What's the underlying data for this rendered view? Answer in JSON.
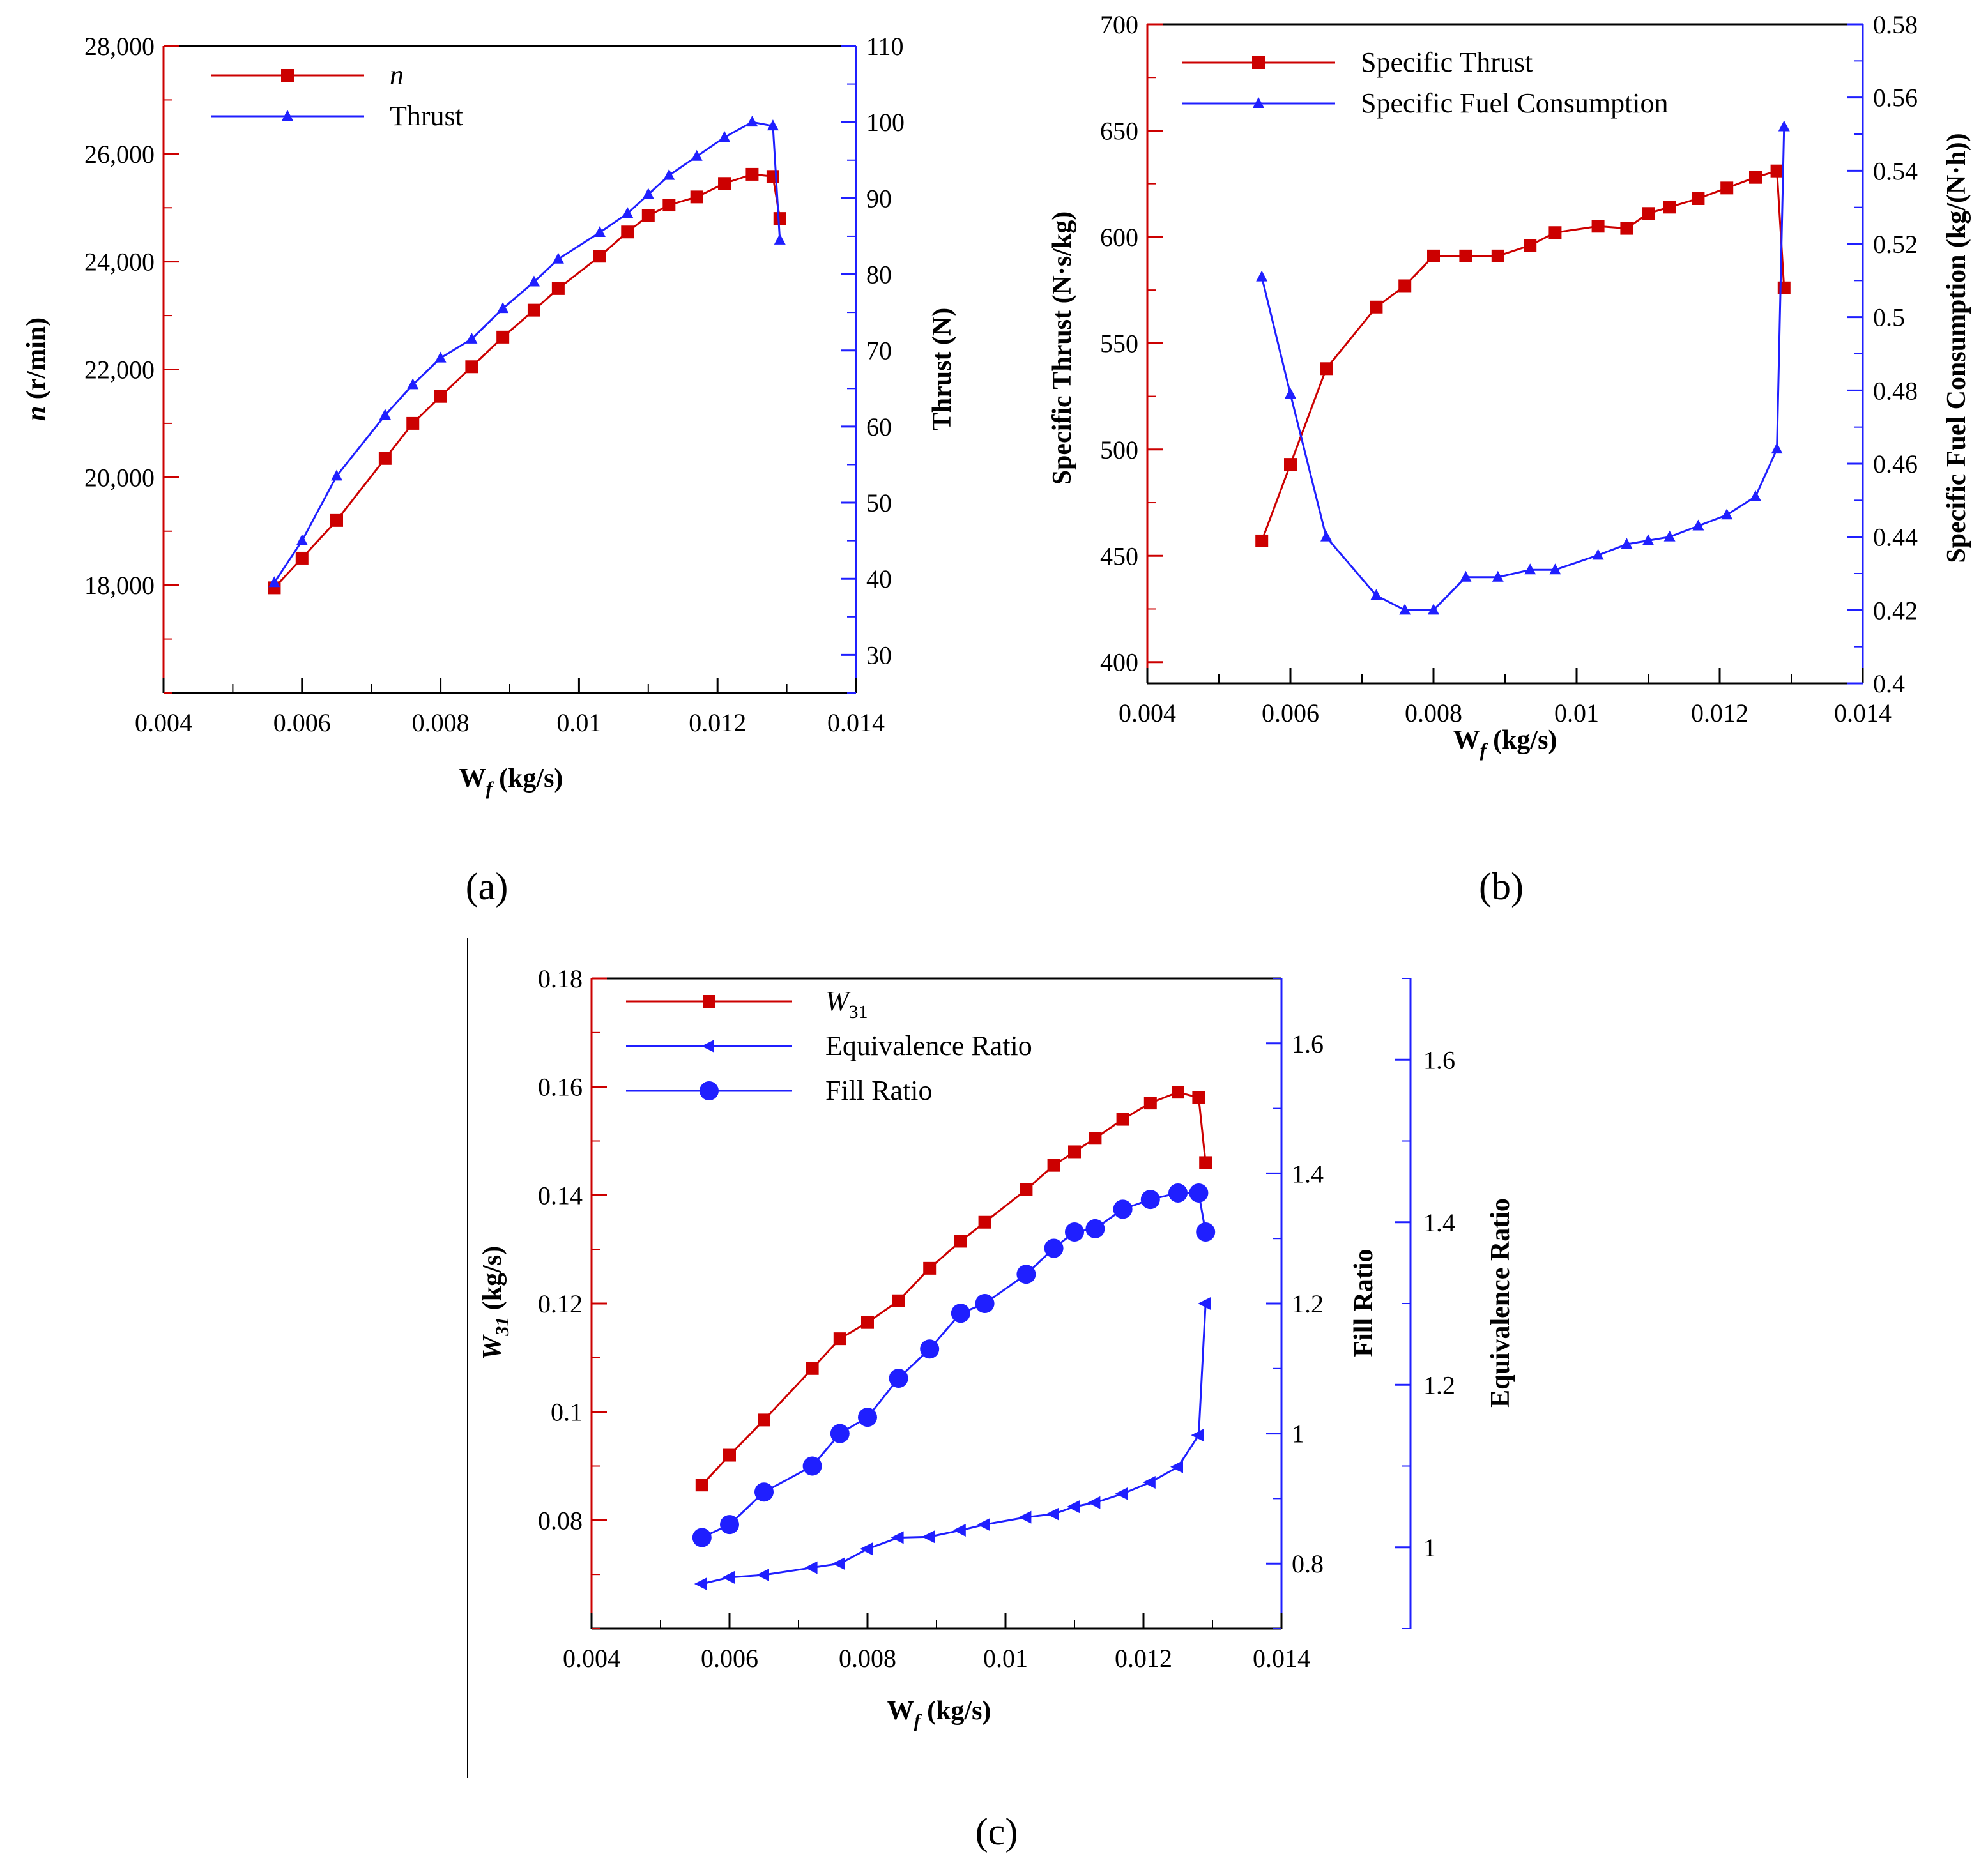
{
  "colors": {
    "red": "#cc0000",
    "blue": "#1f1fff",
    "black": "#000000"
  },
  "panels": [
    {
      "label": "(a)"
    },
    {
      "label": "(b)"
    },
    {
      "label": "(c)"
    }
  ],
  "chart_data": [
    {
      "id": "a",
      "type": "line",
      "xlabel": "W_f (kg/s)",
      "xlabel_main": "W",
      "xlabel_sub": "f",
      "xlabel_rest": " (kg/s)",
      "xlim": [
        0.004,
        0.014
      ],
      "xticks": [
        0.004,
        0.006,
        0.008,
        0.01,
        0.012,
        0.014
      ],
      "xtick_labels": [
        "0.004",
        "0.006",
        "0.008",
        "0.01",
        "0.012",
        "0.014"
      ],
      "legend_position": "top-left",
      "axes": [
        {
          "side": "left",
          "label": "n (r/min)",
          "label_main": "n",
          "label_rest": " (r/min)",
          "color": "#cc0000",
          "lim": [
            16000,
            28000
          ],
          "ticks": [
            18000,
            20000,
            22000,
            24000,
            26000,
            28000
          ],
          "tick_labels": [
            "18,000",
            "20,000",
            "22,000",
            "24,000",
            "26,000",
            "28,000"
          ]
        },
        {
          "side": "right",
          "label": "Thrust (N)",
          "color": "#1f1fff",
          "lim": [
            25,
            110
          ],
          "ticks": [
            30,
            40,
            50,
            60,
            70,
            80,
            90,
            100,
            110
          ],
          "tick_labels": [
            "30",
            "40",
            "50",
            "60",
            "70",
            "80",
            "90",
            "100",
            "110"
          ]
        }
      ],
      "series": [
        {
          "name": "n",
          "axis": 0,
          "color": "#cc0000",
          "marker": "square",
          "x": [
            0.0056,
            0.006,
            0.0065,
            0.0072,
            0.0076,
            0.008,
            0.00845,
            0.0089,
            0.00935,
            0.0097,
            0.0103,
            0.0107,
            0.011,
            0.0113,
            0.0117,
            0.0121,
            0.0125,
            0.0128,
            0.0129
          ],
          "values": [
            17950,
            18500,
            19200,
            20350,
            21000,
            21500,
            22050,
            22600,
            23100,
            23500,
            24100,
            24550,
            24850,
            25050,
            25200,
            25450,
            25620,
            25580,
            24800
          ]
        },
        {
          "name": "Thrust",
          "axis": 1,
          "color": "#1f1fff",
          "marker": "triangle",
          "x": [
            0.0056,
            0.006,
            0.0065,
            0.0072,
            0.0076,
            0.008,
            0.00845,
            0.0089,
            0.00935,
            0.0097,
            0.0103,
            0.0107,
            0.011,
            0.0113,
            0.0117,
            0.0121,
            0.0125,
            0.0128,
            0.0129
          ],
          "values": [
            39.5,
            45,
            53.5,
            61.5,
            65.5,
            69,
            71.5,
            75.5,
            79,
            82,
            85.5,
            88,
            90.5,
            93,
            95.5,
            98,
            100,
            99.5,
            84.5
          ]
        }
      ]
    },
    {
      "id": "b",
      "type": "line",
      "xlabel": "W_f (kg/s)",
      "xlabel_main": "W",
      "xlabel_sub": "f",
      "xlabel_rest": " (kg/s)",
      "xlim": [
        0.004,
        0.014
      ],
      "xticks": [
        0.004,
        0.006,
        0.008,
        0.01,
        0.012,
        0.014
      ],
      "xtick_labels": [
        "0.004",
        "0.006",
        "0.008",
        "0.01",
        "0.012",
        "0.014"
      ],
      "legend_position": "top-left",
      "axes": [
        {
          "side": "left",
          "label": "Specific Thrust (N·s/kg)",
          "color": "#cc0000",
          "lim": [
            390,
            700
          ],
          "ticks": [
            400,
            450,
            500,
            550,
            600,
            650,
            700
          ],
          "tick_labels": [
            "400",
            "450",
            "500",
            "550",
            "600",
            "650",
            "700"
          ]
        },
        {
          "side": "right",
          "label": "Specific Fuel Consumption (kg/(N·h))",
          "color": "#1f1fff",
          "lim": [
            0.4,
            0.58
          ],
          "ticks": [
            0.4,
            0.42,
            0.44,
            0.46,
            0.48,
            0.5,
            0.52,
            0.54,
            0.56,
            0.58
          ],
          "tick_labels": [
            "0.4",
            "0.42",
            "0.44",
            "0.46",
            "0.48",
            "0.5",
            "0.52",
            "0.54",
            "0.56",
            "0.58"
          ]
        }
      ],
      "series": [
        {
          "name": "Specific Thrust",
          "axis": 0,
          "color": "#cc0000",
          "marker": "square",
          "x": [
            0.0056,
            0.006,
            0.0065,
            0.0072,
            0.0076,
            0.008,
            0.00845,
            0.0089,
            0.00935,
            0.0097,
            0.0103,
            0.0107,
            0.011,
            0.0113,
            0.0117,
            0.0121,
            0.0125,
            0.0128,
            0.0129
          ],
          "values": [
            457,
            493,
            538,
            567,
            577,
            591,
            591,
            591,
            596,
            602,
            605,
            604,
            611,
            614,
            618,
            623,
            628,
            631,
            576
          ]
        },
        {
          "name": "Specific Fuel Consumption",
          "axis": 1,
          "color": "#1f1fff",
          "marker": "triangle",
          "x": [
            0.0056,
            0.006,
            0.0065,
            0.0072,
            0.0076,
            0.008,
            0.00845,
            0.0089,
            0.00935,
            0.0097,
            0.0103,
            0.0107,
            0.011,
            0.0113,
            0.0117,
            0.0121,
            0.0125,
            0.0128,
            0.0129
          ],
          "values": [
            0.511,
            0.479,
            0.44,
            0.424,
            0.42,
            0.42,
            0.429,
            0.429,
            0.431,
            0.431,
            0.435,
            0.438,
            0.439,
            0.44,
            0.443,
            0.446,
            0.451,
            0.464,
            0.552
          ]
        }
      ]
    },
    {
      "id": "c",
      "type": "line",
      "xlabel": "W_f (kg/s)",
      "xlabel_main": "W",
      "xlabel_sub": "f",
      "xlabel_rest": " (kg/s)",
      "xlim": [
        0.004,
        0.014
      ],
      "xticks": [
        0.004,
        0.006,
        0.008,
        0.01,
        0.012,
        0.014
      ],
      "xtick_labels": [
        "0.004",
        "0.006",
        "0.008",
        "0.01",
        "0.012",
        "0.014"
      ],
      "legend_position": "top-left",
      "axes": [
        {
          "side": "left",
          "label": "W31 (kg/s)",
          "label_main": "W",
          "label_sub": "31",
          "label_rest": " (kg/s)",
          "color": "#cc0000",
          "lim": [
            0.06,
            0.18
          ],
          "ticks": [
            0.08,
            0.1,
            0.12,
            0.14,
            0.16,
            0.18
          ],
          "tick_labels": [
            "0.08",
            "0.1",
            "0.12",
            "0.14",
            "0.16",
            "0.18"
          ]
        },
        {
          "side": "right",
          "label": "Fill Ratio",
          "color": "#1f1fff",
          "lim": [
            0.7,
            1.7
          ],
          "ticks": [
            0.8,
            1,
            1.2,
            1.4,
            1.6
          ],
          "tick_labels": [
            "0.8",
            "1",
            "1.2",
            "1.4",
            "1.6"
          ]
        },
        {
          "side": "right-outer",
          "label": "Equivalence Ratio",
          "color": "#1f1fff",
          "lim": [
            0.9,
            1.7
          ],
          "ticks": [
            1,
            1.2,
            1.4,
            1.6
          ],
          "tick_labels": [
            "1",
            "1.2",
            "1.4",
            "1.6"
          ]
        }
      ],
      "series": [
        {
          "name": "W31",
          "axis": 0,
          "color": "#cc0000",
          "marker": "square",
          "x": [
            0.0056,
            0.006,
            0.0065,
            0.0072,
            0.0076,
            0.008,
            0.00845,
            0.0089,
            0.00935,
            0.0097,
            0.0103,
            0.0107,
            0.011,
            0.0113,
            0.0117,
            0.0121,
            0.0125,
            0.0128,
            0.0129
          ],
          "values": [
            0.0865,
            0.092,
            0.0985,
            0.108,
            0.1135,
            0.1165,
            0.1205,
            0.1265,
            0.1315,
            0.135,
            0.141,
            0.1455,
            0.148,
            0.1505,
            0.154,
            0.157,
            0.159,
            0.158,
            0.146
          ]
        },
        {
          "name": "Equivalence Ratio",
          "axis": 2,
          "color": "#1f1fff",
          "marker": "left-triangle",
          "x": [
            0.0056,
            0.006,
            0.0065,
            0.0072,
            0.0076,
            0.008,
            0.00845,
            0.0089,
            0.00935,
            0.0097,
            0.0103,
            0.0107,
            0.011,
            0.0113,
            0.0117,
            0.0121,
            0.0125,
            0.0128,
            0.0129
          ],
          "values": [
            0.955,
            0.963,
            0.966,
            0.975,
            0.98,
            0.998,
            1.012,
            1.013,
            1.021,
            1.028,
            1.037,
            1.041,
            1.05,
            1.055,
            1.066,
            1.08,
            1.099,
            1.138,
            1.3
          ]
        },
        {
          "name": "Fill Ratio",
          "axis": 1,
          "color": "#1f1fff",
          "marker": "circle",
          "x": [
            0.0056,
            0.006,
            0.0065,
            0.0072,
            0.0076,
            0.008,
            0.00845,
            0.0089,
            0.00935,
            0.0097,
            0.0103,
            0.0107,
            0.011,
            0.0113,
            0.0117,
            0.0121,
            0.0125,
            0.0128,
            0.0129
          ],
          "values": [
            0.84,
            0.86,
            0.91,
            0.95,
            1.0,
            1.025,
            1.085,
            1.13,
            1.185,
            1.2,
            1.245,
            1.285,
            1.31,
            1.315,
            1.345,
            1.36,
            1.37,
            1.37,
            1.31
          ]
        }
      ]
    }
  ]
}
